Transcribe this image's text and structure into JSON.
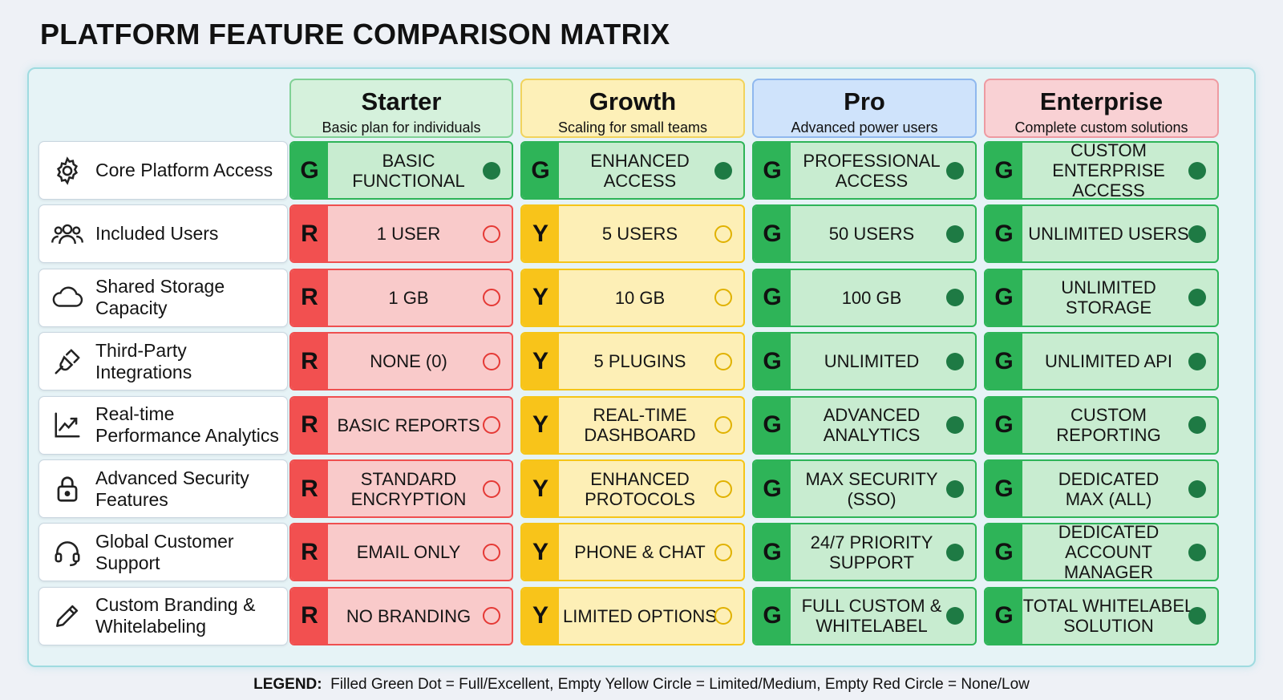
{
  "title": "PLATFORM FEATURE COMPARISON MATRIX",
  "plans": [
    {
      "name": "Starter",
      "subtitle": "Basic plan for individuals",
      "bg": "#d5f1dc",
      "border": "#7fd195"
    },
    {
      "name": "Growth",
      "subtitle": "Scaling for small teams",
      "bg": "#fdf0b8",
      "border": "#f1d35c"
    },
    {
      "name": "Pro",
      "subtitle": "Advanced power users",
      "bg": "#cfe3fb",
      "border": "#8fb8ee"
    },
    {
      "name": "Enterprise",
      "subtitle": "Complete custom solutions",
      "bg": "#f9d1d4",
      "border": "#ee9aa1"
    }
  ],
  "features": [
    {
      "label": "Core Platform Access",
      "icon": "gear-icon"
    },
    {
      "label": "Included Users",
      "icon": "users-icon"
    },
    {
      "label": "Shared Storage\nCapacity",
      "icon": "cloud-icon"
    },
    {
      "label": "Third-Party\nIntegrations",
      "icon": "plug-icon"
    },
    {
      "label": "Real-time\nPerformance Analytics",
      "icon": "chart-icon"
    },
    {
      "label": "Advanced Security\nFeatures",
      "icon": "lock-icon"
    },
    {
      "label": "Global Customer\nSupport",
      "icon": "headset-icon"
    },
    {
      "label": "Custom Branding &\nWhitelabeling",
      "icon": "pencil-icon"
    }
  ],
  "cells": [
    [
      {
        "rating": "G",
        "text": "BASIC\nFUNCTIONAL"
      },
      {
        "rating": "G",
        "text": "ENHANCED\nACCESS"
      },
      {
        "rating": "G",
        "text": "PROFESSIONAL\nACCESS"
      },
      {
        "rating": "G",
        "text": "CUSTOM ENTERPRISE\nACCESS"
      }
    ],
    [
      {
        "rating": "R",
        "text": "1 USER"
      },
      {
        "rating": "Y",
        "text": "5 USERS"
      },
      {
        "rating": "G",
        "text": "50 USERS"
      },
      {
        "rating": "G",
        "text": "UNLIMITED USERS"
      }
    ],
    [
      {
        "rating": "R",
        "text": "1 GB"
      },
      {
        "rating": "Y",
        "text": "10 GB"
      },
      {
        "rating": "G",
        "text": "100 GB"
      },
      {
        "rating": "G",
        "text": "UNLIMITED\nSTORAGE"
      }
    ],
    [
      {
        "rating": "R",
        "text": "NONE (0)"
      },
      {
        "rating": "Y",
        "text": "5 PLUGINS"
      },
      {
        "rating": "G",
        "text": "UNLIMITED"
      },
      {
        "rating": "G",
        "text": "UNLIMITED API"
      }
    ],
    [
      {
        "rating": "R",
        "text": "BASIC REPORTS"
      },
      {
        "rating": "Y",
        "text": "REAL-TIME\nDASHBOARD"
      },
      {
        "rating": "G",
        "text": "ADVANCED\nANALYTICS"
      },
      {
        "rating": "G",
        "text": "CUSTOM\nREPORTING"
      }
    ],
    [
      {
        "rating": "R",
        "text": "STANDARD\nENCRYPTION"
      },
      {
        "rating": "Y",
        "text": "ENHANCED\nPROTOCOLS"
      },
      {
        "rating": "G",
        "text": "MAX SECURITY\n(SSO)"
      },
      {
        "rating": "G",
        "text": "DEDICATED\nMAX (ALL)"
      }
    ],
    [
      {
        "rating": "R",
        "text": "EMAIL ONLY"
      },
      {
        "rating": "Y",
        "text": "PHONE & CHAT"
      },
      {
        "rating": "G",
        "text": "24/7 PRIORITY\nSUPPORT"
      },
      {
        "rating": "G",
        "text": "DEDICATED\nACCOUNT MANAGER"
      }
    ],
    [
      {
        "rating": "R",
        "text": "NO BRANDING"
      },
      {
        "rating": "Y",
        "text": "LIMITED OPTIONS"
      },
      {
        "rating": "G",
        "text": "FULL CUSTOM &\nWHITELABEL"
      },
      {
        "rating": "G",
        "text": "TOTAL WHITELABEL\nSOLUTION"
      }
    ]
  ],
  "legend": {
    "label": "LEGEND:",
    "text": "Filled Green Dot = Full/Excellent, Empty Yellow Circle = Limited/Medium, Empty Red Circle = None/Low"
  },
  "colors": {
    "green": "#2eb458",
    "yellow": "#f8c41a",
    "red": "#f25050",
    "dot_green": "#1e7a44"
  }
}
